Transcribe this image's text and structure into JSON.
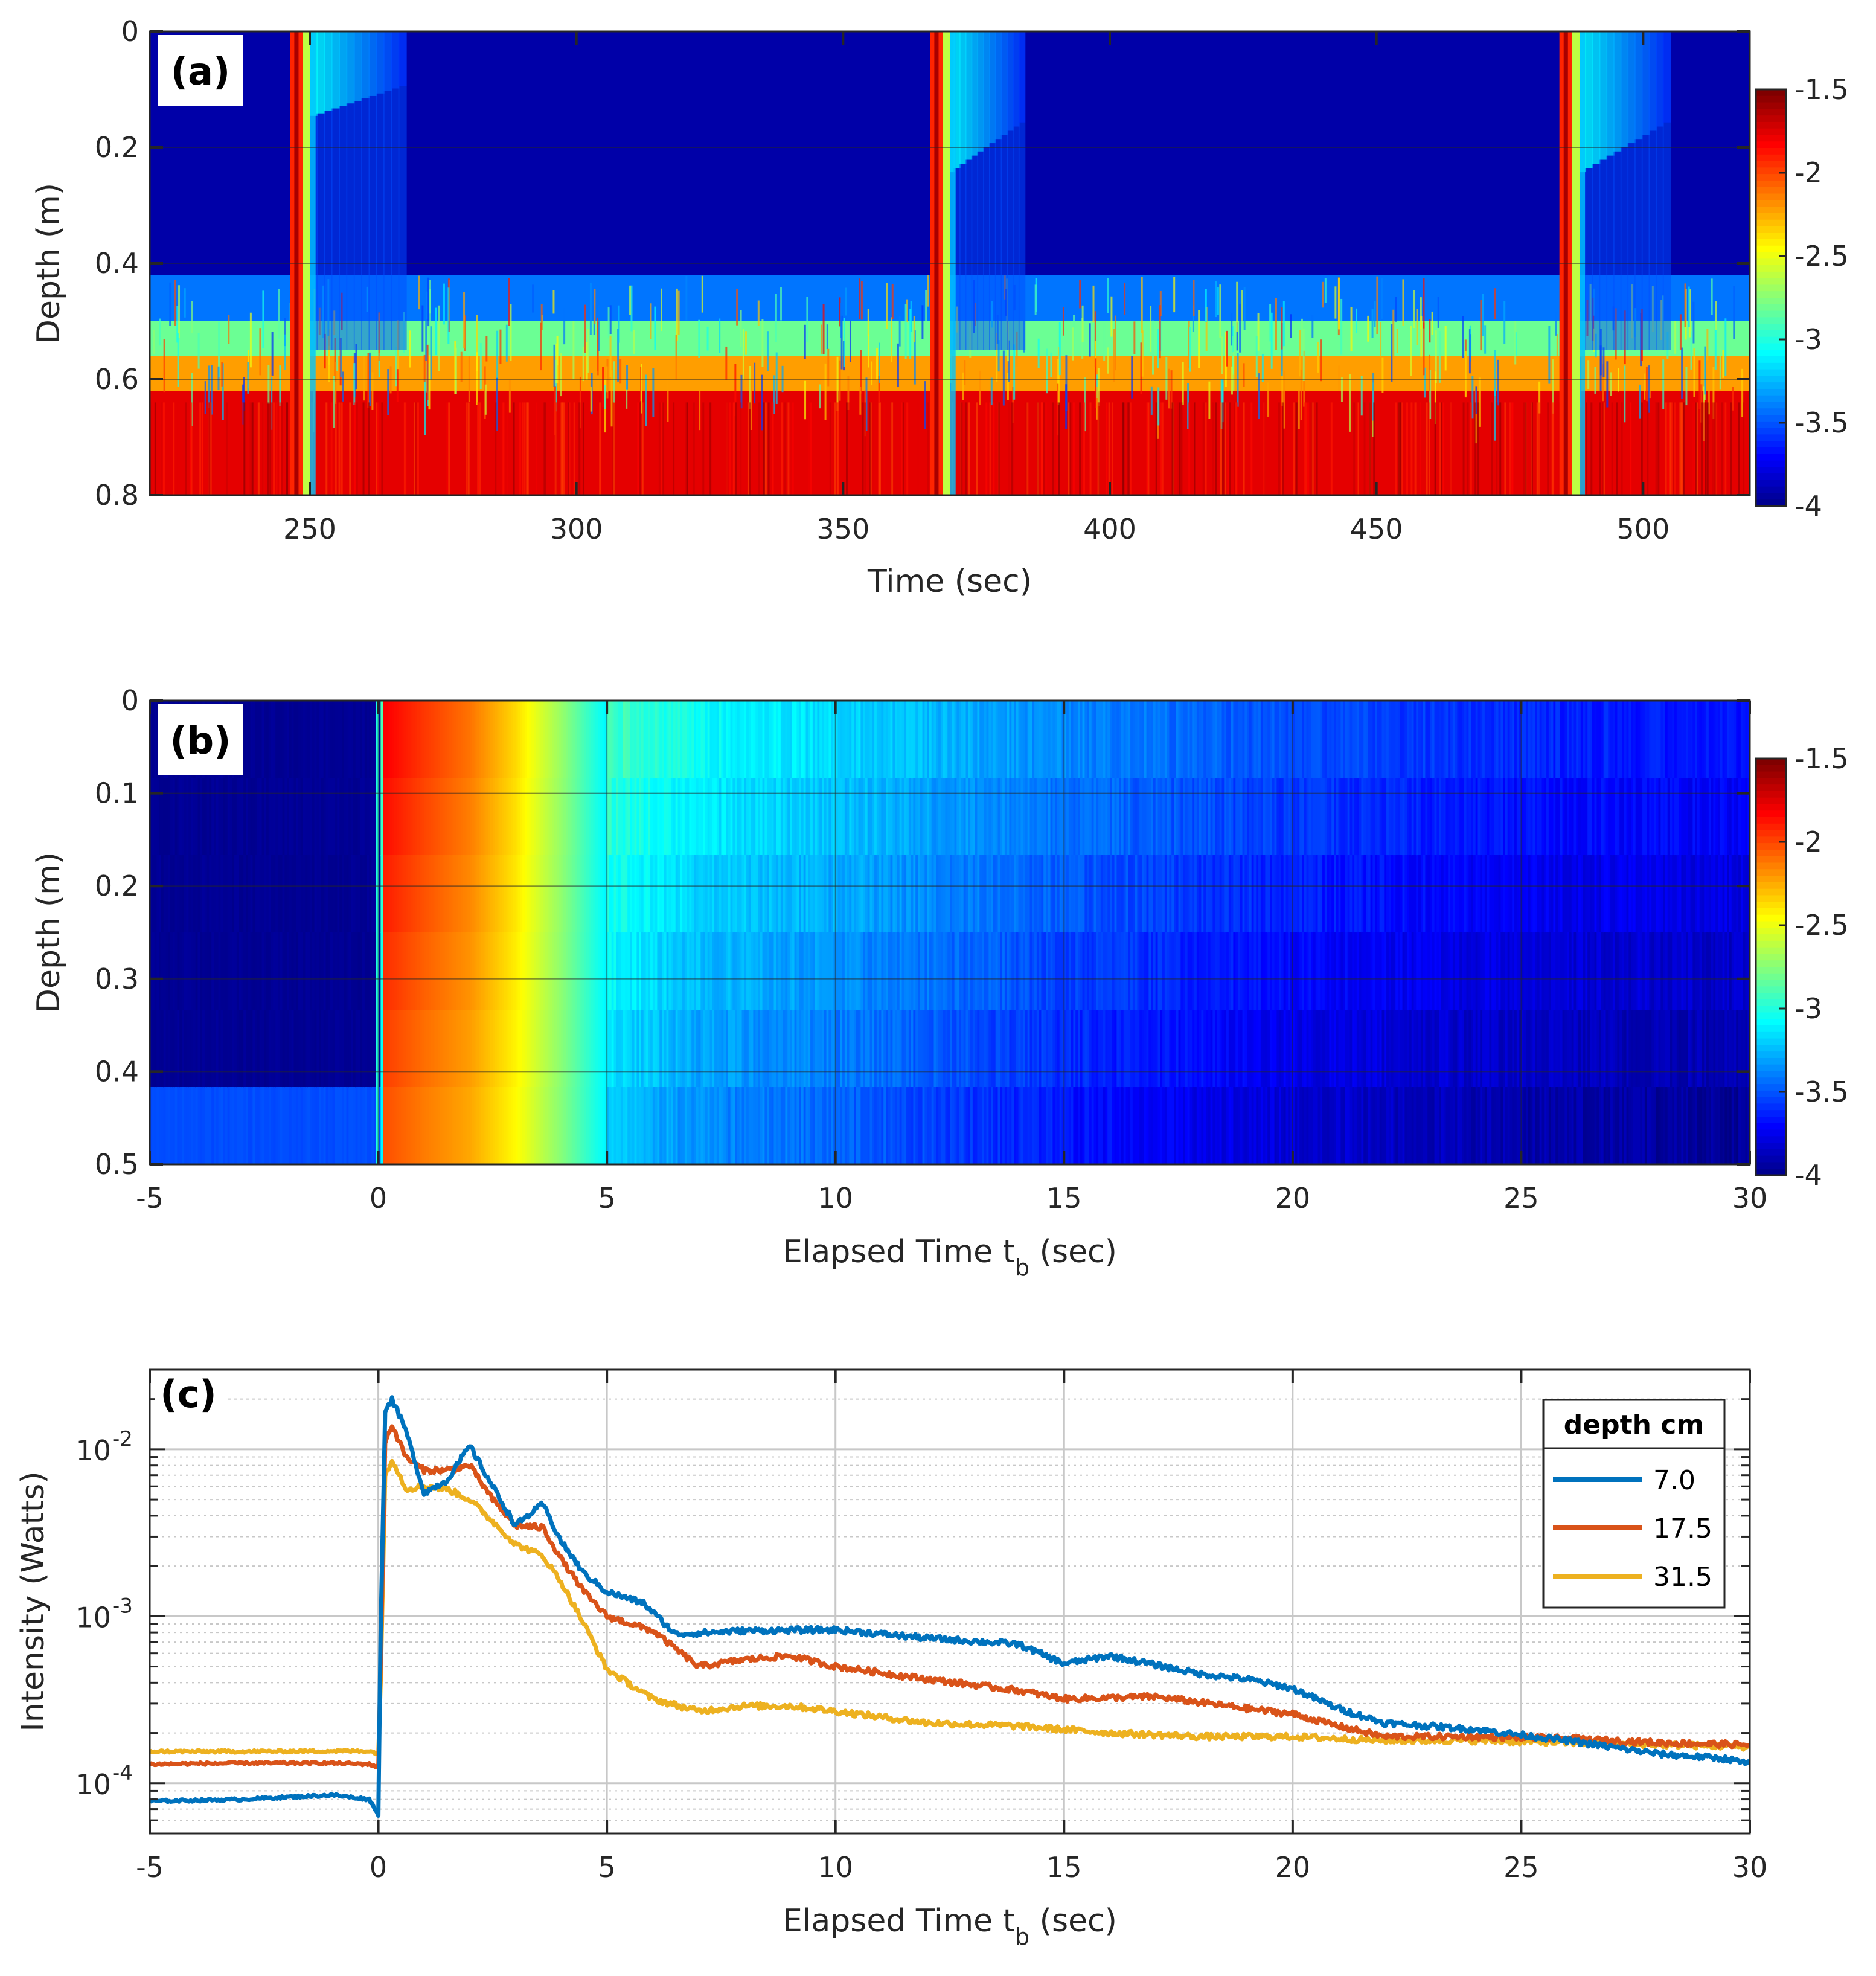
{
  "chart_data": [
    {
      "panel": "(a)",
      "type": "heatmap",
      "xlabel": "Time (sec)",
      "ylabel": "Depth (m)",
      "xlim": [
        220,
        520
      ],
      "ylim": [
        0,
        0.8
      ],
      "x_ticks": [
        250,
        300,
        350,
        400,
        450,
        500
      ],
      "x_tick_labels": [
        "250",
        "300",
        "350",
        "400",
        "450",
        "500"
      ],
      "y_ticks": [
        0,
        0.2,
        0.4,
        0.6,
        0.8
      ],
      "y_tick_labels": [
        "0",
        "0.2",
        "0.4",
        "0.6",
        "0.8"
      ],
      "colorbar": {
        "min": -4,
        "max": -1.5,
        "ticks": [
          -1.5,
          -2,
          -2.5,
          -3,
          -3.5,
          -4
        ],
        "tick_labels": [
          "-1.5",
          "-2",
          "-2.5",
          "-3",
          "-3.5",
          "-4"
        ]
      },
      "background_level": -3.9,
      "layers": [
        {
          "depth_from": 0.0,
          "depth_to": 0.42,
          "value": -3.9
        },
        {
          "depth_from": 0.42,
          "depth_to": 0.5,
          "value": -3.4
        },
        {
          "depth_from": 0.5,
          "depth_to": 0.56,
          "value": -2.8
        },
        {
          "depth_from": 0.56,
          "depth_to": 0.62,
          "value": -2.2
        },
        {
          "depth_from": 0.62,
          "depth_to": 0.8,
          "value": -1.75
        }
      ],
      "breaking_events": [
        {
          "time": 247.5,
          "core_value": -1.9,
          "plume_end_time": 268,
          "plume_depth": 0.15
        },
        {
          "time": 367.5,
          "core_value": -1.9,
          "plume_end_time": 384,
          "plume_depth": 0.25
        },
        {
          "time": 485.5,
          "core_value": -1.9,
          "plume_end_time": 505,
          "plume_depth": 0.25
        }
      ]
    },
    {
      "panel": "(b)",
      "type": "heatmap",
      "xlabel": "Elapsed Time t",
      "xlabel_subscript": "b",
      "xlabel_suffix": " (sec)",
      "ylabel": "Depth (m)",
      "xlim": [
        -5,
        30
      ],
      "ylim": [
        0,
        0.5
      ],
      "x_ticks": [
        -5,
        0,
        5,
        10,
        15,
        20,
        25,
        30
      ],
      "x_tick_labels": [
        "-5",
        "0",
        "5",
        "10",
        "15",
        "20",
        "25",
        "30"
      ],
      "y_ticks": [
        0,
        0.1,
        0.2,
        0.3,
        0.4,
        0.5
      ],
      "y_tick_labels": [
        "0",
        "0.1",
        "0.2",
        "0.3",
        "0.4",
        "0.5"
      ],
      "colorbar": {
        "min": -4,
        "max": -1.5,
        "ticks": [
          -1.5,
          -2,
          -2.5,
          -3,
          -3.5,
          -4
        ],
        "tick_labels": [
          "-1.5",
          "-2",
          "-2.5",
          "-3",
          "-3.5",
          "-4"
        ]
      },
      "time_profile": [
        {
          "t": -5,
          "value": -3.95
        },
        {
          "t": 0,
          "value": -3.95
        },
        {
          "t": 0.1,
          "value": -1.8
        },
        {
          "t": 1.0,
          "value": -1.95
        },
        {
          "t": 2.0,
          "value": -2.1
        },
        {
          "t": 3.0,
          "value": -2.35
        },
        {
          "t": 4.0,
          "value": -2.7
        },
        {
          "t": 5.0,
          "value": -3.1
        },
        {
          "t": 7.0,
          "value": -3.25
        },
        {
          "t": 10.0,
          "value": -3.35
        },
        {
          "t": 15.0,
          "value": -3.55
        },
        {
          "t": 20.0,
          "value": -3.7
        },
        {
          "t": 25.0,
          "value": -3.8
        },
        {
          "t": 30.0,
          "value": -3.85
        }
      ]
    },
    {
      "panel": "(c)",
      "type": "line",
      "xlabel": "Elapsed Time t",
      "xlabel_subscript": "b",
      "xlabel_suffix": " (sec)",
      "ylabel": "Intensity (Watts)",
      "yscale": "log",
      "xlim": [
        -5,
        30
      ],
      "ylim": [
        5e-05,
        0.03
      ],
      "x_ticks": [
        -5,
        0,
        5,
        10,
        15,
        20,
        25,
        30
      ],
      "x_tick_labels": [
        "-5",
        "0",
        "5",
        "10",
        "15",
        "20",
        "25",
        "30"
      ],
      "y_ticks": [
        0.0001,
        0.001,
        0.01
      ],
      "y_tick_labels": [
        {
          "base": "10",
          "exp": "-4"
        },
        {
          "base": "10",
          "exp": "-3"
        },
        {
          "base": "10",
          "exp": "-2"
        }
      ],
      "legend": {
        "title": "depth cm",
        "position": "top-right"
      },
      "series": [
        {
          "name": "7.0",
          "color": "#0072BD",
          "points": [
            [
              -5,
              7.8e-05
            ],
            [
              -3,
              8e-05
            ],
            [
              -1,
              8.5e-05
            ],
            [
              -0.2,
              8e-05
            ],
            [
              0,
              6.5e-05
            ],
            [
              0.05,
              0.0008
            ],
            [
              0.15,
              0.017
            ],
            [
              0.3,
              0.02
            ],
            [
              0.6,
              0.013
            ],
            [
              1.0,
              0.0055
            ],
            [
              1.5,
              0.0065
            ],
            [
              2.0,
              0.0105
            ],
            [
              2.5,
              0.006
            ],
            [
              3.0,
              0.0035
            ],
            [
              3.6,
              0.0047
            ],
            [
              4.0,
              0.0028
            ],
            [
              4.5,
              0.0018
            ],
            [
              5.0,
              0.0014
            ],
            [
              5.8,
              0.0012
            ],
            [
              6.5,
              0.00078
            ],
            [
              8.0,
              0.00082
            ],
            [
              10.0,
              0.00083
            ],
            [
              12.0,
              0.00074
            ],
            [
              14.0,
              0.00068
            ],
            [
              15.0,
              0.00052
            ],
            [
              16.0,
              0.00058
            ],
            [
              18.0,
              0.00045
            ],
            [
              19.0,
              0.00042
            ],
            [
              20.0,
              0.00037
            ],
            [
              21.0,
              0.00028
            ],
            [
              22.0,
              0.00023
            ],
            [
              24.0,
              0.00021
            ],
            [
              26.0,
              0.00018
            ],
            [
              28.0,
              0.00015
            ],
            [
              29.5,
              0.00014
            ],
            [
              30.0,
              0.00013
            ]
          ]
        },
        {
          "name": "17.5",
          "color": "#D95319",
          "points": [
            [
              -5,
              0.00013
            ],
            [
              -3,
              0.000132
            ],
            [
              -1,
              0.000132
            ],
            [
              -0.2,
              0.00013
            ],
            [
              0,
              0.000125
            ],
            [
              0.05,
              0.0005
            ],
            [
              0.15,
              0.011
            ],
            [
              0.3,
              0.014
            ],
            [
              0.6,
              0.009
            ],
            [
              1.0,
              0.0075
            ],
            [
              1.5,
              0.0075
            ],
            [
              2.0,
              0.008
            ],
            [
              2.5,
              0.005
            ],
            [
              3.0,
              0.0035
            ],
            [
              3.6,
              0.0034
            ],
            [
              4.0,
              0.0022
            ],
            [
              4.5,
              0.0014
            ],
            [
              5.0,
              0.001
            ],
            [
              6.0,
              0.00082
            ],
            [
              7.0,
              0.0005
            ],
            [
              8.0,
              0.00055
            ],
            [
              9.0,
              0.00058
            ],
            [
              10.0,
              0.0005
            ],
            [
              12.0,
              0.00042
            ],
            [
              14.0,
              0.00036
            ],
            [
              15.0,
              0.00032
            ],
            [
              17.0,
              0.00033
            ],
            [
              19.0,
              0.00028
            ],
            [
              20.0,
              0.00026
            ],
            [
              21.0,
              0.00022
            ],
            [
              22.0,
              0.00019
            ],
            [
              24.0,
              0.00019
            ],
            [
              26.0,
              0.000185
            ],
            [
              28.0,
              0.000175
            ],
            [
              30.0,
              0.00017
            ]
          ]
        },
        {
          "name": "31.5",
          "color": "#EDB120",
          "points": [
            [
              -5,
              0.000155
            ],
            [
              -3,
              0.000155
            ],
            [
              -1,
              0.000156
            ],
            [
              -0.2,
              0.000156
            ],
            [
              0,
              0.00015
            ],
            [
              0.05,
              0.0004
            ],
            [
              0.15,
              0.007
            ],
            [
              0.3,
              0.0088
            ],
            [
              0.6,
              0.0058
            ],
            [
              1.0,
              0.006
            ],
            [
              1.5,
              0.0058
            ],
            [
              2.0,
              0.005
            ],
            [
              2.5,
              0.0037
            ],
            [
              3.0,
              0.0027
            ],
            [
              3.6,
              0.0023
            ],
            [
              4.0,
              0.0016
            ],
            [
              4.5,
              0.0009
            ],
            [
              5.0,
              0.00048
            ],
            [
              6.0,
              0.00032
            ],
            [
              7.0,
              0.00027
            ],
            [
              8.0,
              0.00029
            ],
            [
              9.0,
              0.00029
            ],
            [
              10.0,
              0.00027
            ],
            [
              12.0,
              0.00023
            ],
            [
              14.0,
              0.00022
            ],
            [
              16.0,
              0.0002
            ],
            [
              18.0,
              0.00019
            ],
            [
              20.0,
              0.00019
            ],
            [
              22.0,
              0.00018
            ],
            [
              24.0,
              0.00018
            ],
            [
              26.0,
              0.000175
            ],
            [
              28.0,
              0.00017
            ],
            [
              30.0,
              0.000165
            ]
          ]
        }
      ]
    }
  ]
}
